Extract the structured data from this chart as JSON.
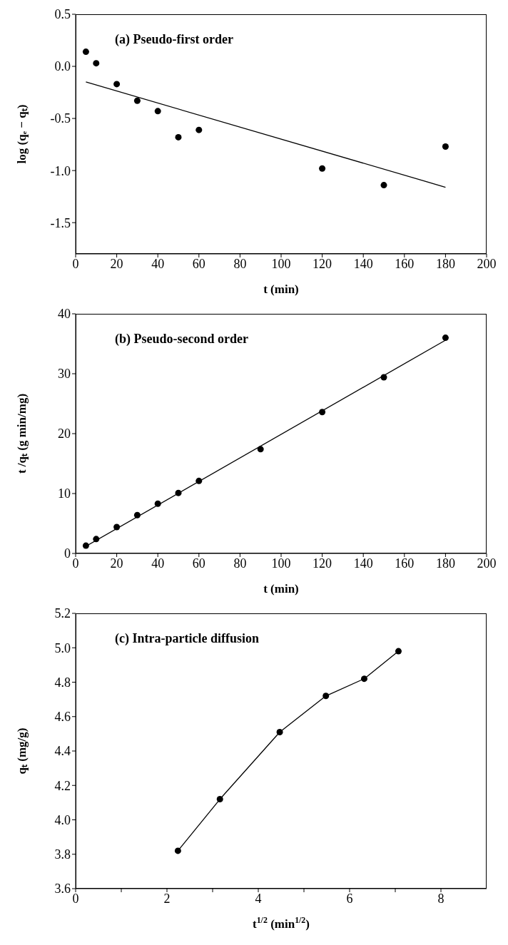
{
  "chart_data": [
    {
      "type": "scatter",
      "title": "(a) Pseudo-first order",
      "xlabel": "t (min)",
      "ylabel": "log (qₑ − qₜ)",
      "xlim": [
        0,
        200
      ],
      "xticks": [
        0,
        20,
        40,
        60,
        80,
        100,
        120,
        140,
        160,
        180,
        200
      ],
      "ylim": [
        -1.8,
        0.5
      ],
      "yticks": [
        -1.5,
        {
          "value": -1,
          "label": "-1.0"
        },
        -0.5,
        {
          "value": 0,
          "label": "0.0"
        },
        0.5
      ],
      "series": [
        {
          "color": "#000000",
          "marker": "circle",
          "x": [
            5,
            10,
            20,
            30,
            40,
            50,
            60,
            120,
            150,
            180
          ],
          "values": [
            0.14,
            0.03,
            -0.17,
            -0.33,
            -0.43,
            -0.68,
            -0.61,
            -0.98,
            -1.14,
            -0.77
          ]
        },
        {
          "type": "line",
          "color": "#000000",
          "marker": "none",
          "line_style": "solid",
          "x": [
            5,
            180
          ],
          "values": [
            -0.15,
            -1.16
          ]
        }
      ]
    },
    {
      "type": "scatter",
      "title": "(b) Pseudo-second order",
      "xlabel": "t (min)",
      "ylabel": "t /qₜ (g min/mg)",
      "xlim": [
        0,
        200
      ],
      "xticks": [
        0,
        20,
        40,
        60,
        80,
        100,
        120,
        140,
        160,
        180,
        200
      ],
      "ylim": [
        0,
        40
      ],
      "yticks": [
        0,
        10,
        20,
        30,
        40
      ],
      "series": [
        {
          "color": "#000000",
          "marker": "circle",
          "x": [
            5,
            10,
            20,
            30,
            40,
            50,
            60,
            90,
            120,
            150,
            180
          ],
          "values": [
            1.3,
            2.4,
            4.4,
            6.4,
            8.3,
            10.1,
            12.1,
            17.4,
            23.6,
            29.4,
            36.0
          ]
        },
        {
          "type": "line",
          "color": "#000000",
          "marker": "none",
          "line_style": "solid",
          "x": [
            5,
            180
          ],
          "values": [
            1.2,
            35.6
          ]
        }
      ]
    },
    {
      "type": "line",
      "title": "(c) Intra-particle diffusion",
      "xlabel": "t$^{1/2}$ (min$^{1/2}$)",
      "ylabel": "qₜ (mg/g)",
      "xlim": [
        0,
        9
      ],
      "xticks": [
        0,
        {
          "value": 1,
          "label": null
        },
        2,
        {
          "value": 3,
          "label": null
        },
        4,
        {
          "value": 5,
          "label": null
        },
        6,
        {
          "value": 7,
          "label": null
        },
        8
      ],
      "ylim": [
        3.6,
        5.2
      ],
      "yticks": [
        3.6,
        3.8,
        {
          "value": 4,
          "label": "4.0"
        },
        4.2,
        4.4,
        4.6,
        4.8,
        {
          "value": 5,
          "label": "5.0"
        },
        5.2
      ],
      "series": [
        {
          "color": "#000000",
          "marker": "circle",
          "line_style": "solid",
          "x": [
            2.24,
            3.16,
            4.47,
            5.48,
            6.32,
            7.07
          ],
          "values": [
            3.82,
            4.12,
            4.51,
            4.72,
            4.82,
            4.98
          ]
        }
      ]
    }
  ]
}
